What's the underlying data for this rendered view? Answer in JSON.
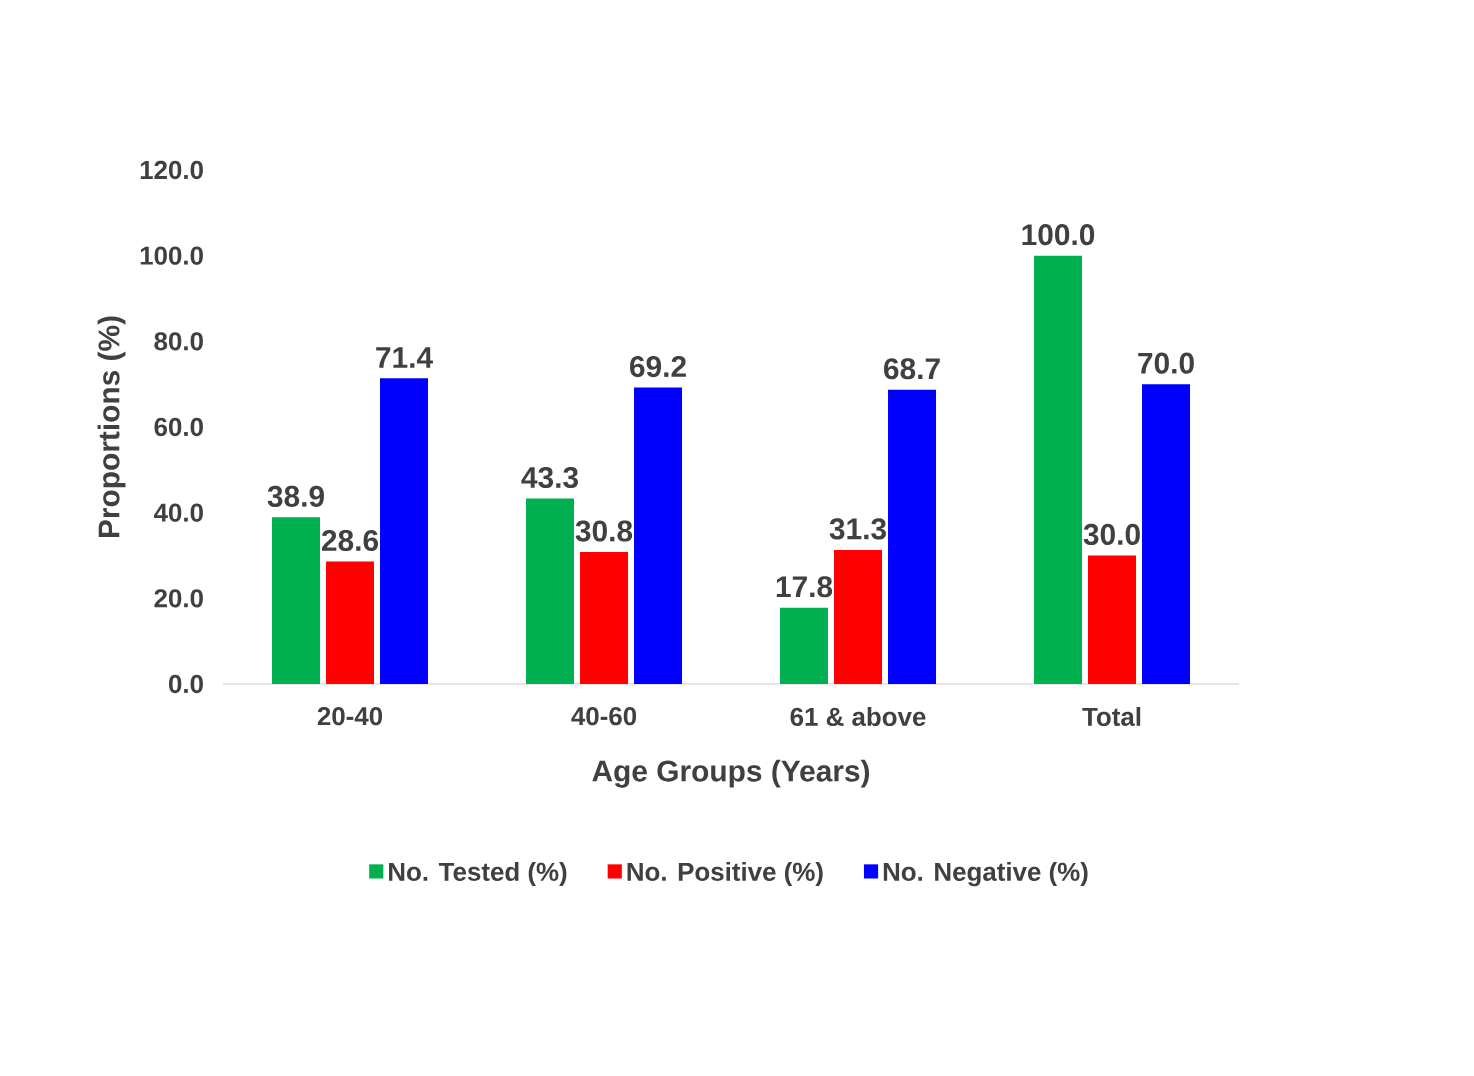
{
  "chart_data": {
    "type": "bar",
    "xlabel": "Age Groups (Years)",
    "ylabel": "Proportions (%)",
    "categories": [
      "20-40",
      "40-60",
      "61 & above",
      "Total"
    ],
    "series": [
      {
        "name": "No. Tested (%)",
        "color": "#00b050",
        "values": [
          38.9,
          43.3,
          17.8,
          100.0
        ],
        "value_labels": [
          "38.9",
          "43.3",
          "17.8",
          "100.0"
        ]
      },
      {
        "name": "No. Positive (%)",
        "color": "#ff0000",
        "values": [
          28.6,
          30.8,
          31.3,
          30.0
        ],
        "value_labels": [
          "28.6",
          "30.8",
          "31.3",
          "30.0"
        ]
      },
      {
        "name": "No. Negative (%)",
        "color": "#0000ff",
        "values": [
          71.4,
          69.2,
          68.7,
          70.0
        ],
        "value_labels": [
          "71.4",
          "69.2",
          "68.7",
          "70.0"
        ]
      }
    ],
    "ylim": [
      0,
      120
    ],
    "yticks": [
      {
        "value": 0,
        "label": "0.0"
      },
      {
        "value": 20,
        "label": "20.0"
      },
      {
        "value": 40,
        "label": "40.0"
      },
      {
        "value": 60,
        "label": "60.0"
      },
      {
        "value": 80,
        "label": "80.0"
      },
      {
        "value": 100,
        "label": "100.0"
      },
      {
        "value": 120,
        "label": "120.0"
      }
    ],
    "grid": false,
    "legend": "bottom"
  }
}
